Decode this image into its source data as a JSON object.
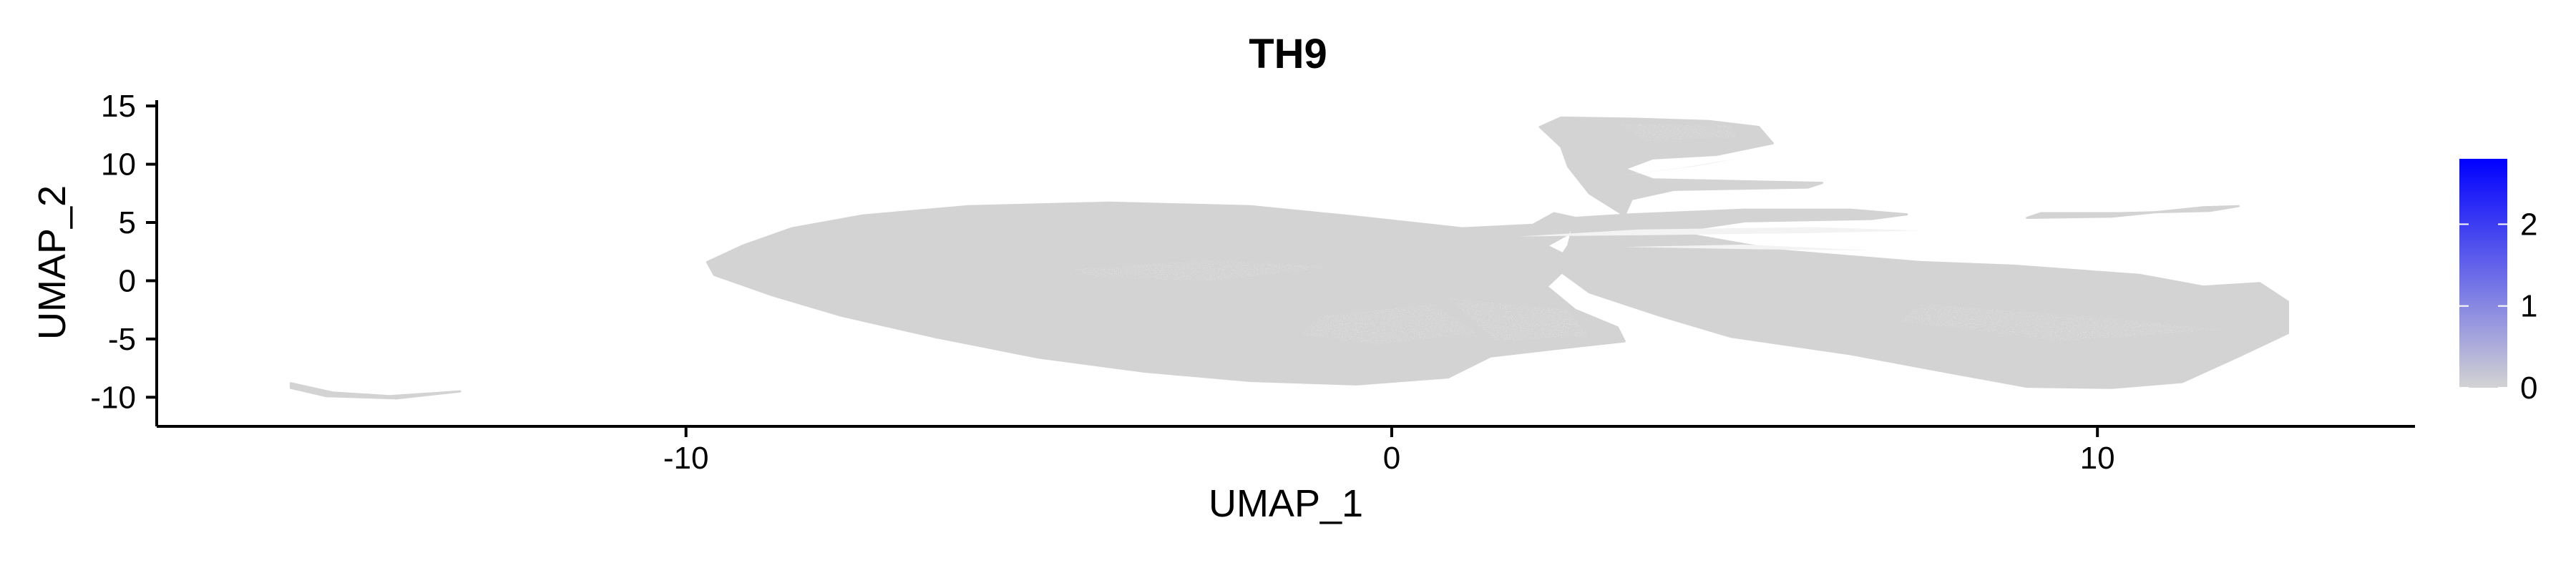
{
  "chart_data": {
    "type": "scatter",
    "title": "TH9",
    "xlabel": "UMAP_1",
    "ylabel": "UMAP_2",
    "xlim": [
      -17.5,
      14.5
    ],
    "ylim": [
      -12.5,
      15.5
    ],
    "x_ticks": [
      -10,
      0,
      10
    ],
    "x_tick_labels": [
      "-10",
      "0",
      "10"
    ],
    "y_ticks": [
      15,
      10,
      5,
      0,
      -5,
      -10
    ],
    "y_tick_labels": [
      "15",
      "10",
      "5",
      "0",
      "-5",
      "-10"
    ],
    "grid": false,
    "point_color": "#d3d3d3",
    "legend": {
      "type": "colorbar",
      "placement": "right",
      "min": 0,
      "max": 2.8,
      "ticks": [
        0,
        1,
        2
      ],
      "tick_labels": [
        "0",
        "1",
        "2"
      ],
      "color_low": "#d3d3d3",
      "color_high": "#0000ff"
    },
    "clusters": [
      {
        "region": "main-body",
        "x_range": [
          -9.7,
          3.2
        ],
        "y_range": [
          -9.0,
          6.7
        ]
      },
      {
        "region": "upper-arm",
        "x_range": [
          2.1,
          6.1
        ],
        "y_range": [
          4.5,
          14.0
        ]
      },
      {
        "region": "right-lobe",
        "x_range": [
          3.0,
          12.7
        ],
        "y_range": [
          -9.2,
          6.0
        ]
      },
      {
        "region": "far-right-streak",
        "x_range": [
          9.0,
          12.0
        ],
        "y_range": [
          5.5,
          6.4
        ]
      },
      {
        "region": "far-left-arc",
        "x_range": [
          -15.6,
          -13.2
        ],
        "y_range": [
          -10.0,
          -8.8
        ]
      }
    ]
  }
}
